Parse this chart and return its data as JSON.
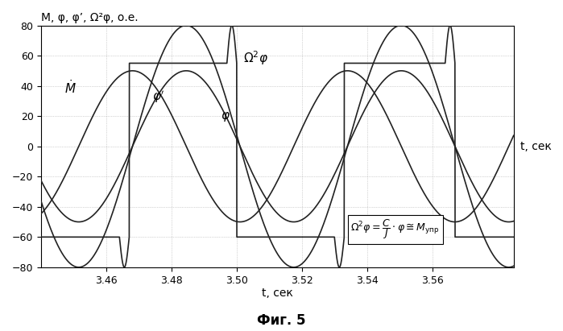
{
  "title": "M, φ, φ’, Ω²φ, о.е.",
  "xlabel": "t, сек",
  "ylabel": "",
  "xlim": [
    3.44,
    3.585
  ],
  "ylim": [
    -80,
    80
  ],
  "xticks": [
    3.46,
    3.48,
    3.5,
    3.52,
    3.54,
    3.56
  ],
  "yticks": [
    -80,
    -60,
    -40,
    -20,
    0,
    20,
    40,
    60,
    80
  ],
  "background_color": "#f5f5f5",
  "grid_color": "#aaaaaa",
  "annotation": "Ω²φ = С/J · φ ≅ Mупр",
  "period": 0.08,
  "T_half": 0.04,
  "phi_amplitude": 50,
  "M_high": 55,
  "M_low": -60,
  "omega2phi_amplitude": 80,
  "phi_prime_amplitude": 50,
  "curve_color": "#222222",
  "figsize": [
    6.99,
    4.11
  ],
  "dpi": 100
}
